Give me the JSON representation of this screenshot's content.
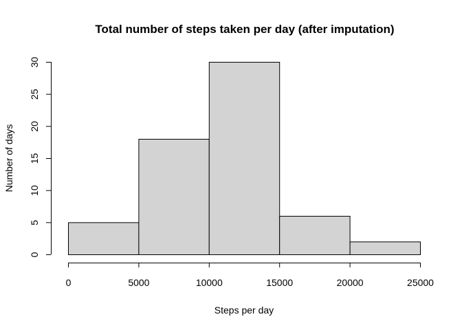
{
  "chart_data": {
    "type": "bar",
    "title": "Total number of steps taken per day (after imputation)",
    "xlabel": "Steps per day",
    "ylabel": "Number of days",
    "bins": [
      {
        "from": 0,
        "to": 5000,
        "count": 5
      },
      {
        "from": 5000,
        "to": 10000,
        "count": 18
      },
      {
        "from": 10000,
        "to": 15000,
        "count": 30
      },
      {
        "from": 15000,
        "to": 20000,
        "count": 6
      },
      {
        "from": 20000,
        "to": 25000,
        "count": 2
      }
    ],
    "xlim": [
      0,
      25000
    ],
    "ylim": [
      0,
      30
    ],
    "x_ticks": [
      "0",
      "5000",
      "10000",
      "15000",
      "20000",
      "25000"
    ],
    "y_ticks": [
      "0",
      "5",
      "10",
      "15",
      "20",
      "25",
      "30"
    ],
    "bar_color": "#d3d3d3",
    "grid": false
  }
}
